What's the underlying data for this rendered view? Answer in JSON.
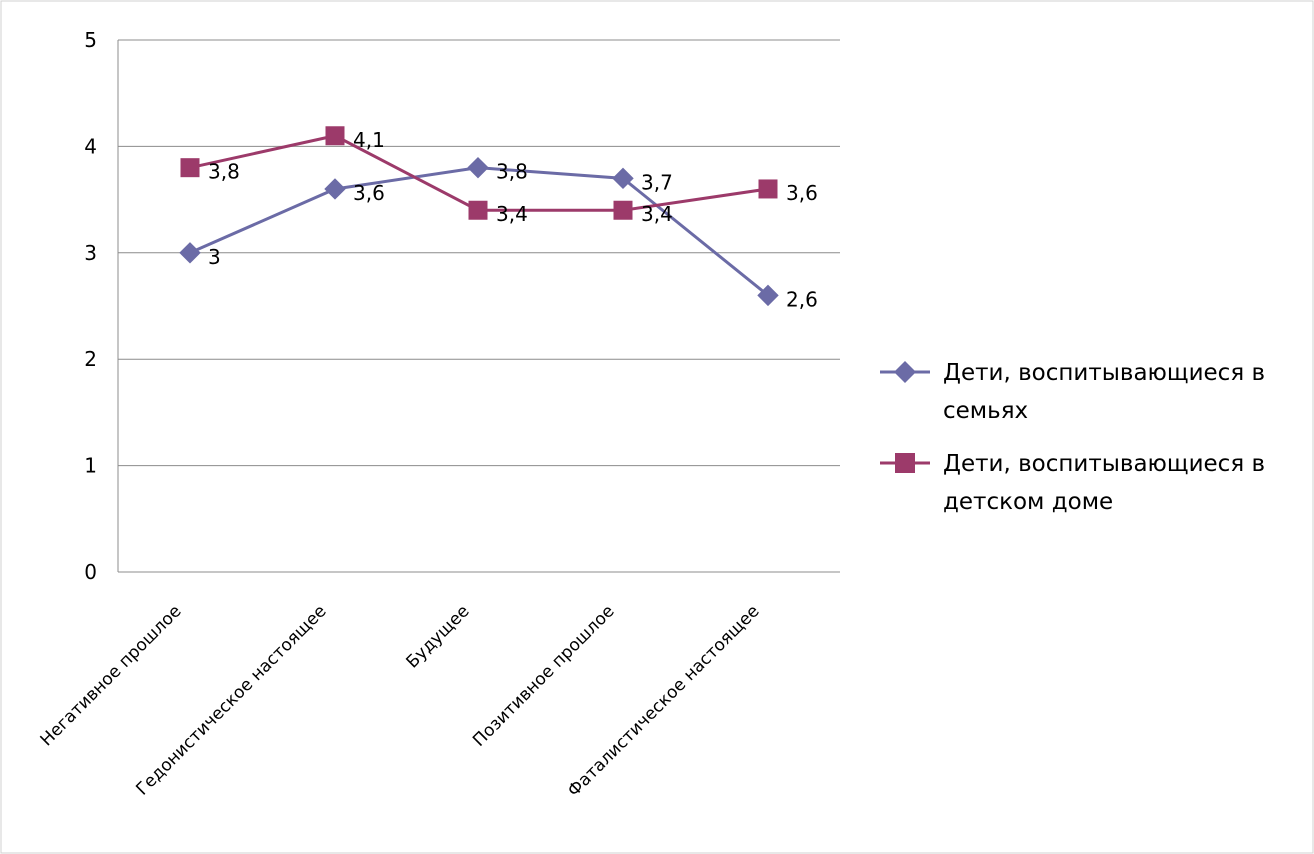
{
  "chart_data": {
    "type": "line",
    "categories": [
      "Негативное прошлое",
      "Гедонистическое настоящее",
      "Будущее",
      "Позитивное прошлое",
      "Фаталистическое настоящее"
    ],
    "series": [
      {
        "name": "Дети, воспитывающиеся в семьях",
        "name_lines": [
          "Дети, воспитывающиеся в",
          "семьях"
        ],
        "values": [
          3,
          3.6,
          3.8,
          3.7,
          2.6
        ],
        "labels": [
          "3",
          "3,6",
          "3,8",
          "3,7",
          "2,6"
        ],
        "color": "#6B6BA6",
        "marker": "diamond"
      },
      {
        "name": "Дети, воспитывающиеся в детском доме",
        "name_lines": [
          "Дети, воспитывающиеся в",
          "детском доме"
        ],
        "values": [
          3.8,
          4.1,
          3.4,
          3.4,
          3.6
        ],
        "labels": [
          "3,8",
          "4,1",
          "3,4",
          "3,4",
          "3,6"
        ],
        "color": "#9C3A6A",
        "marker": "square"
      }
    ],
    "ylim": [
      0,
      5
    ],
    "yticks": [
      0,
      1,
      2,
      3,
      4,
      5
    ],
    "ytick_labels": [
      "0",
      "1",
      "2",
      "3",
      "4",
      "5"
    ],
    "grid": "horizontal",
    "legend": "right",
    "gridline_color": "#8C8C8C"
  }
}
